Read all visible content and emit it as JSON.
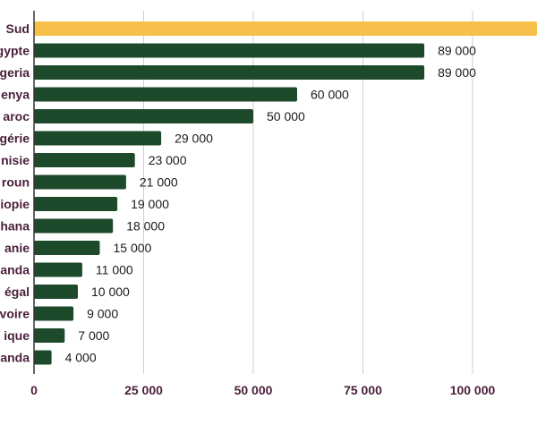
{
  "chart_data": {
    "type": "bar",
    "orientation": "horizontal",
    "categories": [
      "Sud",
      "gypte",
      "geria",
      "enya",
      "aroc",
      "gérie",
      "nisie",
      "roun",
      "iopie",
      "hana",
      "anie",
      "anda",
      "égal",
      "voire",
      "ique",
      "anda"
    ],
    "values": [
      120000,
      89000,
      89000,
      60000,
      50000,
      29000,
      23000,
      21000,
      19000,
      18000,
      15000,
      11000,
      10000,
      9000,
      7000,
      4000
    ],
    "value_labels": [
      "",
      "89 000",
      "89 000",
      "60 000",
      "50 000",
      "29 000",
      "23 000",
      "21 000",
      "19 000",
      "18 000",
      "15 000",
      "11 000",
      "10 000",
      "9 000",
      "7 000",
      "4 000"
    ],
    "highlight_index": 0,
    "xlim": [
      0,
      115000
    ],
    "x_ticks": [
      0,
      25000,
      50000,
      75000,
      100000
    ],
    "x_tick_labels": [
      "0",
      "25 000",
      "50 000",
      "75 000",
      "100 000"
    ],
    "grid": true,
    "colors": {
      "bar": "#1e4a2c",
      "highlight": "#f7c04a"
    }
  }
}
